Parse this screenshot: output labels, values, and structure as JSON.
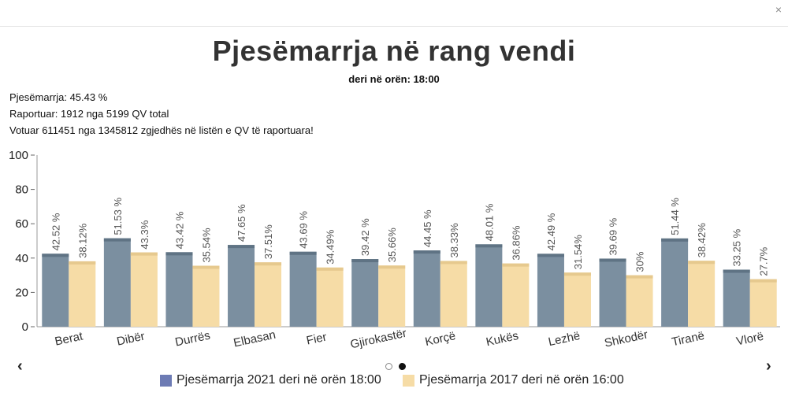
{
  "close_label": "×",
  "title": "Pjesëmarrja në rang vendi",
  "subtitle": "deri në orën: 18:00",
  "info": {
    "turnout": "Pjesëmarrja: 45.43 %",
    "reported": "Raportuar: 1912 nga 5199 QV total",
    "voted": "Votuar 611451 nga 1345812 zgjedhës në listën e QV të raportuara!"
  },
  "nav": {
    "prev": "‹",
    "next": "›"
  },
  "colors": {
    "series1": "#7b8fa0",
    "series1_top": "#5f7384",
    "series2": "#f6dca6",
    "series2_top": "#e6c98e",
    "legend1": "#6d7bb4",
    "legend2": "#f6dca6"
  },
  "chart_data": {
    "type": "bar",
    "categories": [
      "Berat",
      "Dibër",
      "Durrës",
      "Elbasan",
      "Fier",
      "Gjirokastër",
      "Korçë",
      "Kukës",
      "Lezhë",
      "Shkodër",
      "Tiranë",
      "Vlorë"
    ],
    "series": [
      {
        "name": "Pjesëmarrja 2021 deri në orën 18:00",
        "values": [
          42.52,
          51.53,
          43.42,
          47.65,
          43.69,
          39.42,
          44.45,
          48.01,
          42.49,
          39.69,
          51.44,
          33.25
        ],
        "labels": [
          "42.52 %",
          "51.53 %",
          "43.42 %",
          "47.65 %",
          "43.69 %",
          "39.42 %",
          "44.45 %",
          "48.01 %",
          "42.49 %",
          "39.69 %",
          "51.44 %",
          "33.25 %"
        ]
      },
      {
        "name": "Pjesëmarrja 2017 deri në orën 16:00",
        "values": [
          38.12,
          43.3,
          35.54,
          37.51,
          34.49,
          35.66,
          38.33,
          36.86,
          31.54,
          30,
          38.42,
          27.7
        ],
        "labels": [
          "38.12%",
          "43.3%",
          "35.54%",
          "37.51%",
          "34.49%",
          "35.66%",
          "38.33%",
          "36.86%",
          "31.54%",
          "30%",
          "38.42%",
          "27.7%"
        ]
      }
    ],
    "yticks": [
      "0",
      "20",
      "40",
      "60",
      "80",
      "100"
    ],
    "ylim": [
      0,
      100
    ],
    "grid": false,
    "legend_position": "bottom"
  }
}
